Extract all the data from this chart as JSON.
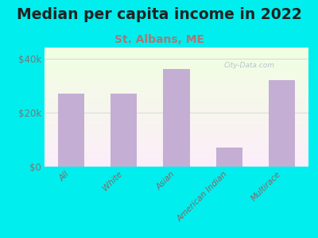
{
  "title": "Median per capita income in 2022",
  "subtitle": "St. Albans, ME",
  "categories": [
    "All",
    "White",
    "Asian",
    "American Indian",
    "Multirace"
  ],
  "values": [
    27000,
    27000,
    36000,
    7000,
    32000
  ],
  "bar_color": "#c4aed4",
  "title_fontsize": 13.5,
  "subtitle_fontsize": 10,
  "subtitle_color": "#aa7777",
  "title_color": "#222222",
  "bg_color": "#00EEEE",
  "tick_color": "#777777",
  "xtick_color": "#886666",
  "ylim": [
    0,
    44000
  ],
  "yticks": [
    0,
    20000,
    40000
  ],
  "ytick_labels": [
    "$0",
    "$20k",
    "$40k"
  ],
  "watermark": "City-Data.com"
}
